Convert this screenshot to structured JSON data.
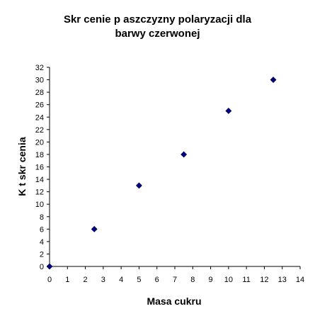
{
  "chart_data": {
    "type": "scatter",
    "title_lines": [
      "Skr  cenie p aszczyzny polaryzacji dla",
      "barwy czerwonej"
    ],
    "xlabel": "Masa cukru",
    "ylabel": "K  t skr  cenia",
    "xlim": [
      0,
      14
    ],
    "ylim": [
      0,
      32
    ],
    "x_ticks": [
      0,
      1,
      2,
      3,
      4,
      5,
      6,
      7,
      8,
      9,
      10,
      11,
      12,
      13,
      14
    ],
    "y_ticks": [
      0,
      2,
      4,
      6,
      8,
      10,
      12,
      14,
      16,
      18,
      20,
      22,
      24,
      26,
      28,
      30,
      32
    ],
    "grid": false,
    "legend": "none",
    "marker": "diamond",
    "marker_color": "#000080",
    "points": [
      {
        "x": 0,
        "y": 0
      },
      {
        "x": 2.5,
        "y": 6
      },
      {
        "x": 5,
        "y": 13
      },
      {
        "x": 7.5,
        "y": 18
      },
      {
        "x": 10,
        "y": 25
      },
      {
        "x": 12.5,
        "y": 30
      }
    ]
  }
}
